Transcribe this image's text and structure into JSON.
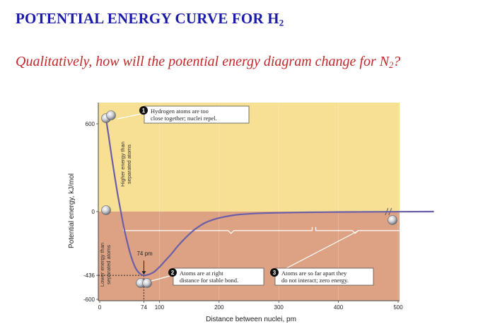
{
  "slide": {
    "title_main": "POTENTIAL ENERGY CURVE FOR H",
    "title_sub": "2",
    "question_main": "Qualitatively, how will the potential energy diagram change for N",
    "question_sub": "2",
    "question_end": "?"
  },
  "chart_data": {
    "type": "line",
    "xlabel": "Distance between nuclei, pm",
    "ylabel": "Potential energy, kJ/mol",
    "xlim": [
      0,
      570
    ],
    "ylim": [
      -600,
      700
    ],
    "x_ticks": [
      {
        "value": 0,
        "label": "0"
      },
      {
        "value": 74,
        "label": "74"
      },
      {
        "value": 100,
        "label": "100"
      },
      {
        "value": 200,
        "label": "200"
      },
      {
        "value": 300,
        "label": "300"
      },
      {
        "value": 400,
        "label": "400"
      },
      {
        "value": 500,
        "label": "500"
      }
    ],
    "y_ticks": [
      {
        "value": 600,
        "label": "600"
      },
      {
        "value": 0,
        "label": "0"
      },
      {
        "value": -436,
        "label": "-436"
      },
      {
        "value": -600,
        "label": "-600"
      }
    ],
    "series": [
      {
        "x": [
          10,
          15,
          20,
          25,
          30,
          35,
          40,
          45,
          50,
          55,
          60,
          65,
          70,
          74,
          80,
          90,
          100,
          110,
          120,
          130,
          140,
          150,
          160,
          175,
          190,
          210,
          230,
          260,
          300,
          350,
          400,
          450,
          500,
          560
        ],
        "y": [
          650,
          515,
          375,
          245,
          120,
          10,
          -100,
          -190,
          -270,
          -335,
          -385,
          -415,
          -432,
          -436,
          -433,
          -415,
          -380,
          -335,
          -290,
          -240,
          -195,
          -155,
          -120,
          -80,
          -55,
          -35,
          -22,
          -13,
          -8,
          -5,
          -3,
          -2,
          -1,
          0
        ]
      }
    ],
    "annotations": {
      "callout_1": {
        "number": "1",
        "line1": "Hydrogen atoms are too",
        "line2": "close together; nuclei repel."
      },
      "callout_2": {
        "number": "2",
        "line1": "Atoms are at right",
        "line2": "distance for stable bond."
      },
      "callout_3": {
        "number": "3",
        "line1": "Atoms are so far apart they",
        "line2": "do not interact; zero energy."
      },
      "bond_length_label": "74 pm",
      "upper_region": {
        "line1": "Higher energy than",
        "line2": "separated atoms"
      },
      "lower_region": {
        "line1": "Lower energy than",
        "line2": "separated atoms"
      }
    },
    "colors": {
      "upper_region": "#f7df94",
      "lower_region": "#dda283",
      "curve": "#6b5fa8"
    }
  }
}
